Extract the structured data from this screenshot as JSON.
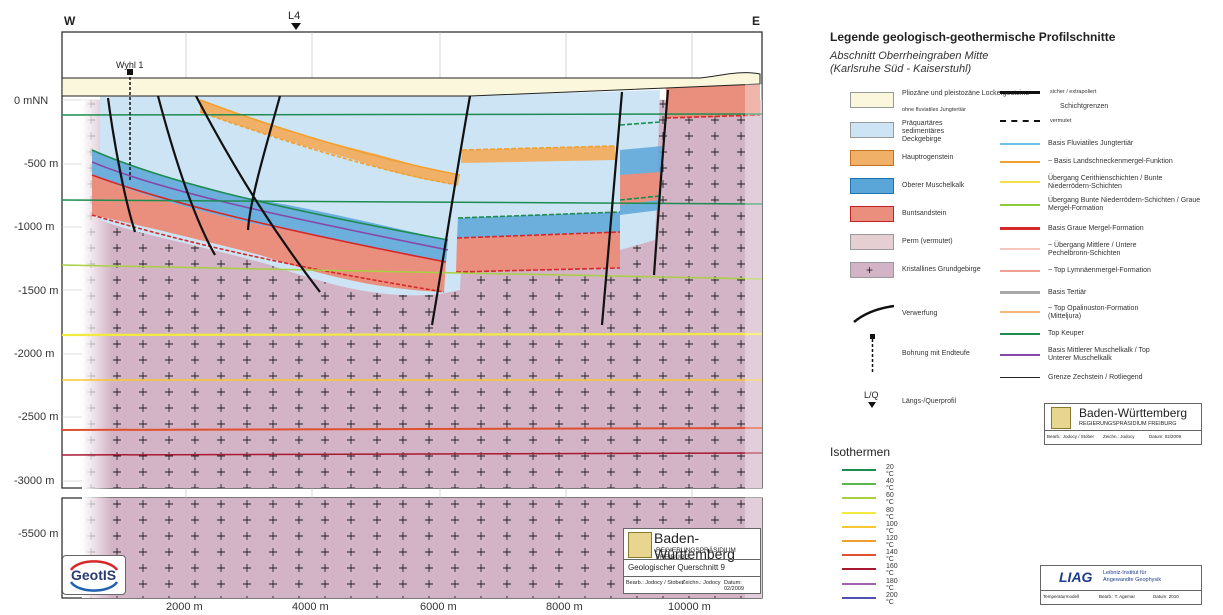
{
  "profile": {
    "west_label": "W",
    "east_label": "E",
    "section_marker": "L4",
    "well_label": "Wyhl 1",
    "y_ticks": [
      "0 mNN",
      "-500 m",
      "-1000 m",
      "-1500 m",
      "-2000 m",
      "-2500 m",
      "-3000 m",
      "-5500 m"
    ],
    "x_ticks": [
      "2000 m",
      "4000 m",
      "6000 m",
      "8000 m",
      "10000 m"
    ]
  },
  "titlebox": {
    "state": "Baden-Württemberg",
    "authority": "REGIERUNGSPRÄSIDIUM FREIBURG",
    "title": "Geologischer Querschnitt 9",
    "bearb": "Bearb.: Jodocy / Stober",
    "zeichn": "Zeichn.: Jodocy",
    "datum": "Datum: 02/2009"
  },
  "geotis_logo": "GeotIS",
  "legend": {
    "title": "Legende geologisch-geothermische Profilschnitte",
    "subtitle_1": "Abschnitt Oberrheingraben Mitte",
    "subtitle_2": "(Karlsruhe Süd - Kaiserstuhl)",
    "units": [
      {
        "label": "Pliozäne und pleistozäne Lockergesteine",
        "sub": "ohne fluviatiles Jungtertiär",
        "color": "#fbf7dc"
      },
      {
        "label": "Präquartäres sedimentäres Deckgebirge",
        "sub": "",
        "color": "#cde4f4"
      },
      {
        "label": "Hauptrogenstein",
        "sub": "",
        "color": "#f0b067"
      },
      {
        "label": "Oberer Muschelkalk",
        "sub": "",
        "color": "#5aa6d8"
      },
      {
        "label": "Buntsandstein",
        "sub": "",
        "color": "#ea8f7e"
      },
      {
        "label": "Perm (vermutet)",
        "sub": "",
        "color": "#e6cfd3"
      },
      {
        "label": "Kristallines Grundgebirge",
        "sub": "",
        "color": "#d3b3c6"
      }
    ],
    "symbols": {
      "fault": "Verwerfung",
      "borehole": "Bohrung mit Endteufe",
      "profile": "Längs-/Querprofil",
      "profile_mark": "L/Q"
    },
    "boundaries": {
      "certain": "sicher / extrapoliert",
      "header": "Schichtgrenzen",
      "assumed": "vermutet"
    },
    "lines": [
      {
        "label": "Basis Fluviatiles Jungtertiär",
        "color": "#6cc0ea"
      },
      {
        "label": "~ Basis Landschneckenmergel-Funktion",
        "color": "#f0a030"
      },
      {
        "label": "Übergang Cerithienschichten / Bunte Niederrödern-Schichten",
        "color": "#f2e24a"
      },
      {
        "label": "Übergang Bunte Niederrödern-Schichten / Graue Mergel-Formation",
        "color": "#8ccc3c"
      },
      {
        "label": "Basis Graue Mergel-Formation",
        "color": "#d62828"
      },
      {
        "label": "~ Übergang Mittlere / Untere Pechelbronn-Schichten",
        "color": "#f6c6c0"
      },
      {
        "label": "~ Top Lymnäenmergel-Formation",
        "color": "#f0a090"
      },
      {
        "label": "Basis Tertiär",
        "color": "#a8a8a8"
      },
      {
        "label": "~ Top Opalinuston-Formation (Mitteljura)",
        "color": "#f4b878"
      },
      {
        "label": "Top Keuper",
        "color": "#1e8c50"
      },
      {
        "label": "Basis Mittlerer Muschelkalk / Top Unterer Muschelkalk",
        "color": "#8848a8"
      },
      {
        "label": "Grenze Zechstein / Rotliegend",
        "color": "#222222"
      }
    ]
  },
  "isotherms": {
    "title": "Isothermen",
    "items": [
      {
        "label": "20 °C",
        "color": "#1e8c50"
      },
      {
        "label": "40 °C",
        "color": "#5cb84a"
      },
      {
        "label": "60 °C",
        "color": "#a8d040"
      },
      {
        "label": "80 °C",
        "color": "#f2ea40"
      },
      {
        "label": "100 °C",
        "color": "#f8c830"
      },
      {
        "label": "120 °C",
        "color": "#f0a030"
      },
      {
        "label": "140 °C",
        "color": "#e05030"
      },
      {
        "label": "160 °C",
        "color": "#a81830"
      },
      {
        "label": "180 °C",
        "color": "#a060b0"
      },
      {
        "label": "200 °C",
        "color": "#5050b0"
      }
    ]
  },
  "legend_logo": {
    "state": "Baden-Württemberg",
    "authority": "REGIERUNGSPRÄSIDIUM FREIBURG",
    "bearb": "Bearb.: Jodocy / Stober",
    "zeichn": "Zeichn.: Jodocy",
    "datum": "Datum: 02/2009"
  },
  "liag_logo": {
    "name": "LIAG",
    "text_1": "Leibniz-Institut für",
    "text_2": "Angewandte Geophysik",
    "cell_1": "Temperaturmodell",
    "cell_2": "Bearb.: T. Agemar",
    "cell_3": "Datum: 2010"
  }
}
